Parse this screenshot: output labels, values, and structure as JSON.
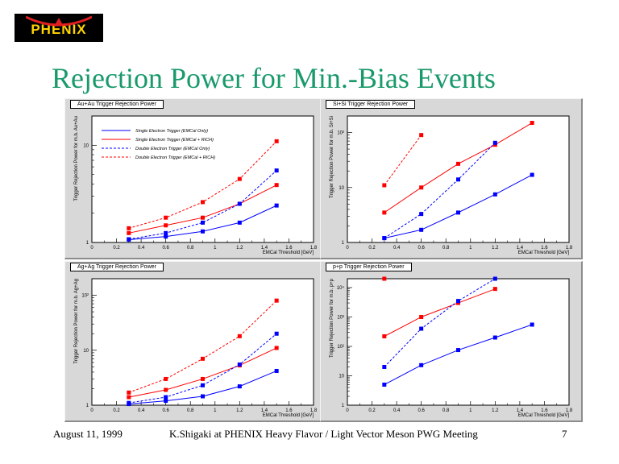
{
  "logo": {
    "text": "PHENIX"
  },
  "page_title": "Rejection Power for Min.-Bias Events",
  "footer": {
    "date": "August 11, 1999",
    "presenter": "K.Shigaki at PHENIX Heavy Flavor / Light Vector Meson PWG Meeting",
    "page_number": "7"
  },
  "colors": {
    "title": "#1a9a6a",
    "blue": "#0000ff",
    "red": "#ff0000",
    "panel_bg": "#d8d8d8",
    "frame_bg": "#ffffff"
  },
  "chart_data": [
    {
      "type": "line",
      "title": "Au+Au Trigger Rejection Power",
      "xlabel": "EMCal Threshold [GeV]",
      "ylabel": "Trigger Rejection Power for m.b. Au+Au",
      "xlim": [
        0,
        1.8
      ],
      "ylim": [
        1,
        20
      ],
      "yscale": "log",
      "x_ticks": [
        "0",
        "0.2",
        "0.4",
        "0.6",
        "0.8",
        "1",
        "1.2",
        "1.4",
        "1.6",
        "1.8"
      ],
      "y_ticks": [
        {
          "v": 1,
          "label": "1"
        },
        {
          "v": 10,
          "label": "10"
        }
      ],
      "legend_position": "top-left",
      "series": [
        {
          "name": "Single Electron Trigger (EMCal Only)",
          "color": "#0000ff",
          "dashed": false,
          "x": [
            0.3,
            0.6,
            0.9,
            1.2,
            1.5
          ],
          "y": [
            1.07,
            1.15,
            1.3,
            1.6,
            2.4
          ]
        },
        {
          "name": "Single Electron Trigger (EMCal + RICH)",
          "color": "#ff0000",
          "dashed": false,
          "x": [
            0.3,
            0.6,
            0.9,
            1.2,
            1.5
          ],
          "y": [
            1.25,
            1.5,
            1.8,
            2.5,
            3.9
          ]
        },
        {
          "name": "Double Electron Trigger (EMCal Only)",
          "color": "#0000ff",
          "dashed": true,
          "x": [
            0.3,
            0.6,
            0.9,
            1.2,
            1.5
          ],
          "y": [
            1.08,
            1.25,
            1.6,
            2.5,
            5.5
          ]
        },
        {
          "name": "Double Electron Trigger (EMCal + RICH)",
          "color": "#ff0000",
          "dashed": true,
          "x": [
            0.3,
            0.6,
            0.9,
            1.2,
            1.5
          ],
          "y": [
            1.4,
            1.8,
            2.6,
            4.5,
            11
          ]
        }
      ]
    },
    {
      "type": "line",
      "title": "Si+Si Trigger Rejection Power",
      "xlabel": "EMCal Threshold [GeV]",
      "ylabel": "Trigger Rejection Power for m.b. Si+Si",
      "xlim": [
        0,
        1.8
      ],
      "ylim": [
        1,
        200
      ],
      "yscale": "log",
      "x_ticks": [
        "0",
        "0.2",
        "0.4",
        "0.6",
        "0.8",
        "1",
        "1.2",
        "1.4",
        "1.6",
        "1.8"
      ],
      "y_ticks": [
        {
          "v": 1,
          "label": "1"
        },
        {
          "v": 10,
          "label": "10"
        },
        {
          "v": 100,
          "label": "10²"
        }
      ],
      "series": [
        {
          "color": "#0000ff",
          "dashed": false,
          "x": [
            0.3,
            0.6,
            0.9,
            1.2,
            1.5
          ],
          "y": [
            1.2,
            1.7,
            3.5,
            7.5,
            17
          ]
        },
        {
          "color": "#ff0000",
          "dashed": false,
          "x": [
            0.3,
            0.6,
            0.9,
            1.2,
            1.5
          ],
          "y": [
            3.5,
            10,
            27,
            60,
            150
          ]
        },
        {
          "color": "#0000ff",
          "dashed": true,
          "x": [
            0.3,
            0.6,
            0.9,
            1.2
          ],
          "y": [
            1.2,
            3.3,
            14,
            65
          ]
        },
        {
          "color": "#ff0000",
          "dashed": true,
          "x": [
            0.3,
            0.6
          ],
          "y": [
            11,
            90
          ]
        }
      ]
    },
    {
      "type": "line",
      "title": "Ag+Ag Trigger Rejection Power",
      "xlabel": "EMCal Threshold [GeV]",
      "ylabel": "Trigger Rejection Power for m.b. Ag+Ag",
      "xlim": [
        0,
        1.8
      ],
      "ylim": [
        1,
        200
      ],
      "yscale": "log",
      "x_ticks": [
        "0",
        "0.2",
        "0.4",
        "0.6",
        "0.8",
        "1",
        "1.2",
        "1.4",
        "1.6",
        "1.8"
      ],
      "y_ticks": [
        {
          "v": 1,
          "label": "1"
        },
        {
          "v": 10,
          "label": "10"
        },
        {
          "v": 100,
          "label": "10²"
        }
      ],
      "series": [
        {
          "color": "#0000ff",
          "dashed": false,
          "x": [
            0.3,
            0.6,
            0.9,
            1.2,
            1.5
          ],
          "y": [
            1.05,
            1.2,
            1.45,
            2.2,
            4.2
          ]
        },
        {
          "color": "#ff0000",
          "dashed": false,
          "x": [
            0.3,
            0.6,
            0.9,
            1.2,
            1.5
          ],
          "y": [
            1.4,
            1.9,
            3,
            5.3,
            11
          ]
        },
        {
          "color": "#0000ff",
          "dashed": true,
          "x": [
            0.3,
            0.6,
            0.9,
            1.2,
            1.5
          ],
          "y": [
            1.1,
            1.4,
            2.3,
            5.5,
            20
          ]
        },
        {
          "color": "#ff0000",
          "dashed": true,
          "x": [
            0.3,
            0.6,
            0.9,
            1.2,
            1.5
          ],
          "y": [
            1.7,
            3,
            7,
            18,
            80
          ]
        }
      ]
    },
    {
      "type": "line",
      "title": "p+p Trigger Rejection Power",
      "xlabel": "EMCal Threshold [GeV]",
      "ylabel": "Trigger Rejection Power for m.b. p+p",
      "xlim": [
        0,
        1.8
      ],
      "ylim": [
        1,
        20000
      ],
      "yscale": "log",
      "x_ticks": [
        "0",
        "0.2",
        "0.4",
        "0.6",
        "0.8",
        "1",
        "1.2",
        "1.4",
        "1.6",
        "1.8"
      ],
      "y_ticks": [
        {
          "v": 1,
          "label": "1"
        },
        {
          "v": 10,
          "label": "10"
        },
        {
          "v": 100,
          "label": "10²"
        },
        {
          "v": 1000,
          "label": "10³"
        },
        {
          "v": 10000,
          "label": "10⁴"
        }
      ],
      "series": [
        {
          "color": "#0000ff",
          "dashed": false,
          "x": [
            0.3,
            0.6,
            0.9,
            1.2,
            1.5
          ],
          "y": [
            5,
            23,
            75,
            200,
            550
          ]
        },
        {
          "color": "#ff0000",
          "dashed": false,
          "x": [
            0.3,
            0.6,
            0.9,
            1.2
          ],
          "y": [
            220,
            1000,
            3000,
            9000
          ]
        },
        {
          "color": "#0000ff",
          "dashed": true,
          "x": [
            0.3,
            0.6,
            0.9,
            1.2
          ],
          "y": [
            20,
            400,
            3500,
            20000
          ]
        },
        {
          "color": "#ff0000",
          "dashed": true,
          "x": [
            0.3
          ],
          "y": [
            20000
          ]
        }
      ]
    }
  ]
}
